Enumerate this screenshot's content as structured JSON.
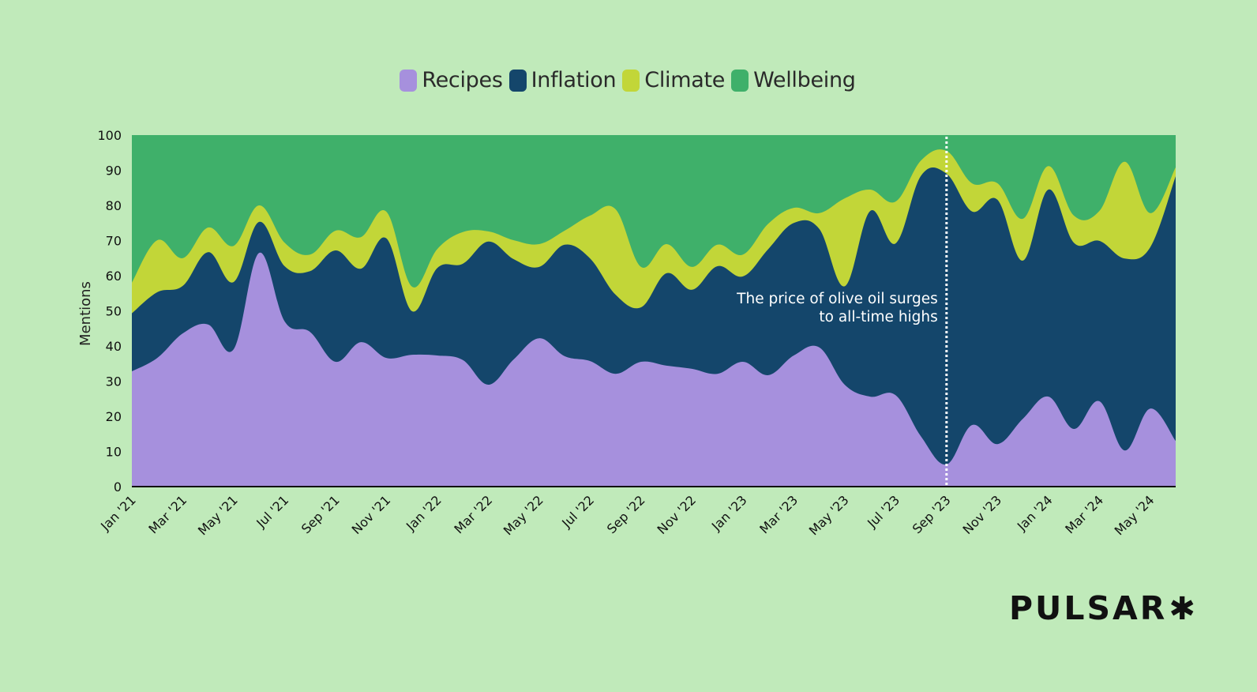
{
  "chart_data": {
    "type": "area",
    "stacked": true,
    "title": "",
    "xlabel": "",
    "ylabel": "Mentions",
    "ylim": [
      0,
      100
    ],
    "yticks": [
      0,
      10,
      20,
      30,
      40,
      50,
      60,
      70,
      80,
      90,
      100
    ],
    "grid": false,
    "legend_position": "top-center",
    "x": [
      "Jan '21",
      "Feb '21",
      "Mar '21",
      "Apr '21",
      "May '21",
      "Jun '21",
      "Jul '21",
      "Aug '21",
      "Sep '21",
      "Oct '21",
      "Nov '21",
      "Dec '21",
      "Jan '22",
      "Feb '22",
      "Mar '22",
      "Apr '22",
      "May '22",
      "Jun '22",
      "Jul '22",
      "Aug '22",
      "Sep '22",
      "Oct '22",
      "Nov '22",
      "Dec '22",
      "Jan '23",
      "Feb '23",
      "Mar '23",
      "Apr '23",
      "May '23",
      "Jun '23",
      "Jul '23",
      "Aug '23",
      "Sep '23",
      "Oct '23",
      "Nov '23",
      "Dec '23",
      "Jan '24",
      "Feb '24",
      "Mar '24",
      "Apr '24",
      "May '24",
      "Jun '24"
    ],
    "xtick_labels": [
      "Jan '21",
      "Mar '21",
      "May '21",
      "Jul '21",
      "Sep '21",
      "Nov '21",
      "Jan '22",
      "Mar '22",
      "May '22",
      "Jul '22",
      "Sep '22",
      "Nov '22",
      "Jan '23",
      "Mar '23",
      "May '23",
      "Jul '23",
      "Sep '23",
      "Nov '23",
      "Jan '24",
      "Mar '24",
      "May '24"
    ],
    "series": [
      {
        "name": "Recipes",
        "color": "#a690dd",
        "values": [
          32.8,
          36.6,
          43.6,
          46.1,
          39.1,
          66.5,
          47.0,
          44.0,
          35.5,
          41.1,
          36.6,
          37.5,
          37.3,
          36.0,
          29.0,
          36.2,
          42.2,
          37.1,
          35.7,
          32.1,
          35.5,
          34.4,
          33.5,
          32.1,
          35.5,
          31.7,
          37.3,
          39.6,
          29.0,
          25.6,
          26.0,
          14.2,
          6.3,
          17.5,
          12.1,
          19.3,
          25.6,
          16.4,
          24.3,
          10.3,
          22.2,
          13.0
        ]
      },
      {
        "name": "Inflation",
        "color": "#14466b",
        "values": [
          16.5,
          18.7,
          13.5,
          20.6,
          19.1,
          8.8,
          15.7,
          17.3,
          31.7,
          20.9,
          34.0,
          12.4,
          24.9,
          27.4,
          40.7,
          28.5,
          20.3,
          31.7,
          29.2,
          22.5,
          15.5,
          26.3,
          22.5,
          30.6,
          24.3,
          35.9,
          37.7,
          33.7,
          28.0,
          52.8,
          43.2,
          74.3,
          82.7,
          60.8,
          69.5,
          45.0,
          58.9,
          53.0,
          45.6,
          54.6,
          45.9,
          75.3
        ]
      },
      {
        "name": "Climate",
        "color": "#c2d638",
        "values": [
          8.7,
          14.8,
          7.9,
          7.0,
          10.3,
          4.7,
          6.7,
          4.7,
          5.6,
          9.0,
          7.6,
          7.0,
          5.4,
          9.0,
          2.9,
          5.4,
          6.5,
          4.0,
          12.2,
          24.3,
          11.5,
          8.3,
          6.5,
          6.1,
          6.2,
          7.2,
          4.3,
          4.5,
          25.0,
          6.1,
          11.9,
          4.3,
          6.5,
          8.0,
          4.7,
          11.9,
          6.7,
          7.7,
          8.5,
          27.5,
          9.7,
          2.5
        ]
      },
      {
        "name": "Wellbeing",
        "color": "#3fb06a",
        "values": [
          42.0,
          29.9,
          35.0,
          26.3,
          31.5,
          20.0,
          30.6,
          34.0,
          27.2,
          29.0,
          21.8,
          43.1,
          32.4,
          27.6,
          27.4,
          29.9,
          31.0,
          27.2,
          22.9,
          21.1,
          37.5,
          31.0,
          37.5,
          31.2,
          34.0,
          25.2,
          20.7,
          22.2,
          18.0,
          15.5,
          18.9,
          7.2,
          4.5,
          13.7,
          13.7,
          23.8,
          8.8,
          22.9,
          21.6,
          7.6,
          22.2,
          9.2
        ]
      }
    ],
    "annotations": [
      {
        "x": "Sep '23",
        "type": "vertical-dashed-line",
        "color": "#ffffff",
        "text_lines": [
          "The price of olive oil surges",
          "to all-time highs"
        ]
      }
    ]
  },
  "branding": {
    "logo_text": "PULSAR",
    "logo_icon": "asterisk-icon",
    "logo_glyph": "✱"
  },
  "background_color": "#c0eaba"
}
